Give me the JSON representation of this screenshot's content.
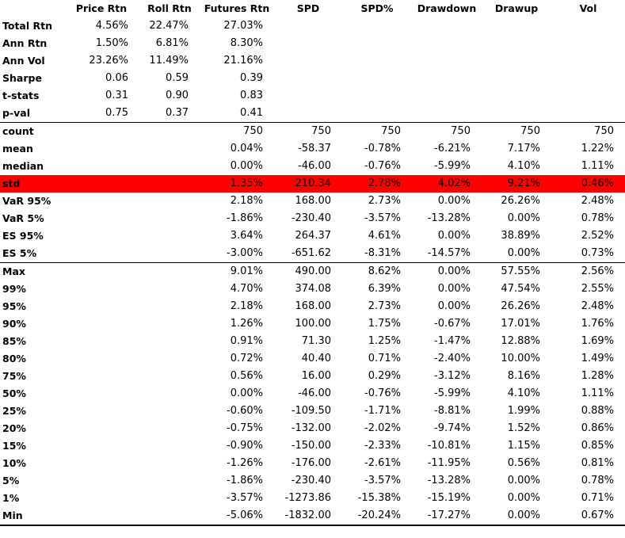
{
  "table": {
    "headers": [
      "",
      "Price Rtn",
      "Roll Rtn",
      "Futures Rtn",
      "SPD",
      "SPD%",
      "Drawdown",
      "Drawup",
      "Vol"
    ],
    "rows": [
      {
        "label": "Total Rtn",
        "values": [
          "4.56%",
          "22.47%",
          "27.03%",
          "",
          "",
          "",
          "",
          ""
        ]
      },
      {
        "label": "Ann Rtn",
        "values": [
          "1.50%",
          "6.81%",
          "8.30%",
          "",
          "",
          "",
          "",
          ""
        ]
      },
      {
        "label": "Ann Vol",
        "values": [
          "23.26%",
          "11.49%",
          "21.16%",
          "",
          "",
          "",
          "",
          ""
        ]
      },
      {
        "label": "Sharpe",
        "values": [
          "0.06",
          "0.59",
          "0.39",
          "",
          "",
          "",
          "",
          ""
        ]
      },
      {
        "label": "t-stats",
        "values": [
          "0.31",
          "0.90",
          "0.83",
          "",
          "",
          "",
          "",
          ""
        ]
      },
      {
        "label": "p-val",
        "values": [
          "0.75",
          "0.37",
          "0.41",
          "",
          "",
          "",
          "",
          ""
        ]
      },
      {
        "label": "count",
        "values": [
          "",
          "",
          "750",
          "750",
          "750",
          "750",
          "750",
          "750"
        ]
      },
      {
        "label": "mean",
        "values": [
          "",
          "",
          "0.04%",
          "-58.37",
          "-0.78%",
          "-6.21%",
          "7.17%",
          "1.22%"
        ]
      },
      {
        "label": "median",
        "values": [
          "",
          "",
          "0.00%",
          "-46.00",
          "-0.76%",
          "-5.99%",
          "4.10%",
          "1.11%"
        ]
      },
      {
        "label": "std",
        "values": [
          "",
          "",
          "1.35%",
          "210.34",
          "2.78%",
          "4.02%",
          "9.21%",
          "0.46%"
        ]
      },
      {
        "label": "VaR 95%",
        "values": [
          "",
          "",
          "2.18%",
          "168.00",
          "2.73%",
          "0.00%",
          "26.26%",
          "2.48%"
        ]
      },
      {
        "label": "VaR 5%",
        "values": [
          "",
          "",
          "-1.86%",
          "-230.40",
          "-3.57%",
          "-13.28%",
          "0.00%",
          "0.78%"
        ]
      },
      {
        "label": "ES 95%",
        "values": [
          "",
          "",
          "3.64%",
          "264.37",
          "4.61%",
          "0.00%",
          "38.89%",
          "2.52%"
        ]
      },
      {
        "label": "ES 5%",
        "values": [
          "",
          "",
          "-3.00%",
          "-651.62",
          "-8.31%",
          "-14.57%",
          "0.00%",
          "0.73%"
        ]
      },
      {
        "label": "Max",
        "values": [
          "",
          "",
          "9.01%",
          "490.00",
          "8.62%",
          "0.00%",
          "57.55%",
          "2.56%"
        ]
      },
      {
        "label": "99%",
        "values": [
          "",
          "",
          "4.70%",
          "374.08",
          "6.39%",
          "0.00%",
          "47.54%",
          "2.55%"
        ]
      },
      {
        "label": "95%",
        "values": [
          "",
          "",
          "2.18%",
          "168.00",
          "2.73%",
          "0.00%",
          "26.26%",
          "2.48%"
        ]
      },
      {
        "label": "90%",
        "values": [
          "",
          "",
          "1.26%",
          "100.00",
          "1.75%",
          "-0.67%",
          "17.01%",
          "1.76%"
        ]
      },
      {
        "label": "85%",
        "values": [
          "",
          "",
          "0.91%",
          "71.30",
          "1.25%",
          "-1.47%",
          "12.88%",
          "1.69%"
        ]
      },
      {
        "label": "80%",
        "values": [
          "",
          "",
          "0.72%",
          "40.40",
          "0.71%",
          "-2.40%",
          "10.00%",
          "1.49%"
        ]
      },
      {
        "label": "75%",
        "values": [
          "",
          "",
          "0.56%",
          "16.00",
          "0.29%",
          "-3.12%",
          "8.16%",
          "1.28%"
        ]
      },
      {
        "label": "50%",
        "values": [
          "",
          "",
          "0.00%",
          "-46.00",
          "-0.76%",
          "-5.99%",
          "4.10%",
          "1.11%"
        ]
      },
      {
        "label": "25%",
        "values": [
          "",
          "",
          "-0.60%",
          "-109.50",
          "-1.71%",
          "-8.81%",
          "1.99%",
          "0.88%"
        ]
      },
      {
        "label": "20%",
        "values": [
          "",
          "",
          "-0.75%",
          "-132.00",
          "-2.02%",
          "-9.74%",
          "1.52%",
          "0.86%"
        ]
      },
      {
        "label": "15%",
        "values": [
          "",
          "",
          "-0.90%",
          "-150.00",
          "-2.33%",
          "-10.81%",
          "1.15%",
          "0.85%"
        ]
      },
      {
        "label": "10%",
        "values": [
          "",
          "",
          "-1.26%",
          "-176.00",
          "-2.61%",
          "-11.95%",
          "0.56%",
          "0.81%"
        ]
      },
      {
        "label": "5%",
        "values": [
          "",
          "",
          "-1.86%",
          "-230.40",
          "-3.57%",
          "-13.28%",
          "0.00%",
          "0.78%"
        ]
      },
      {
        "label": "1%",
        "values": [
          "",
          "",
          "-3.57%",
          "-1273.86",
          "-15.38%",
          "-15.19%",
          "0.00%",
          "0.71%"
        ]
      },
      {
        "label": "Min",
        "values": [
          "",
          "",
          "-5.06%",
          "-1832.00",
          "-20.24%",
          "-17.27%",
          "0.00%",
          "0.67%"
        ]
      }
    ],
    "highlight_label": "std",
    "highlight_color": "#ff0000",
    "separator_before": [
      "count",
      "Max"
    ]
  }
}
